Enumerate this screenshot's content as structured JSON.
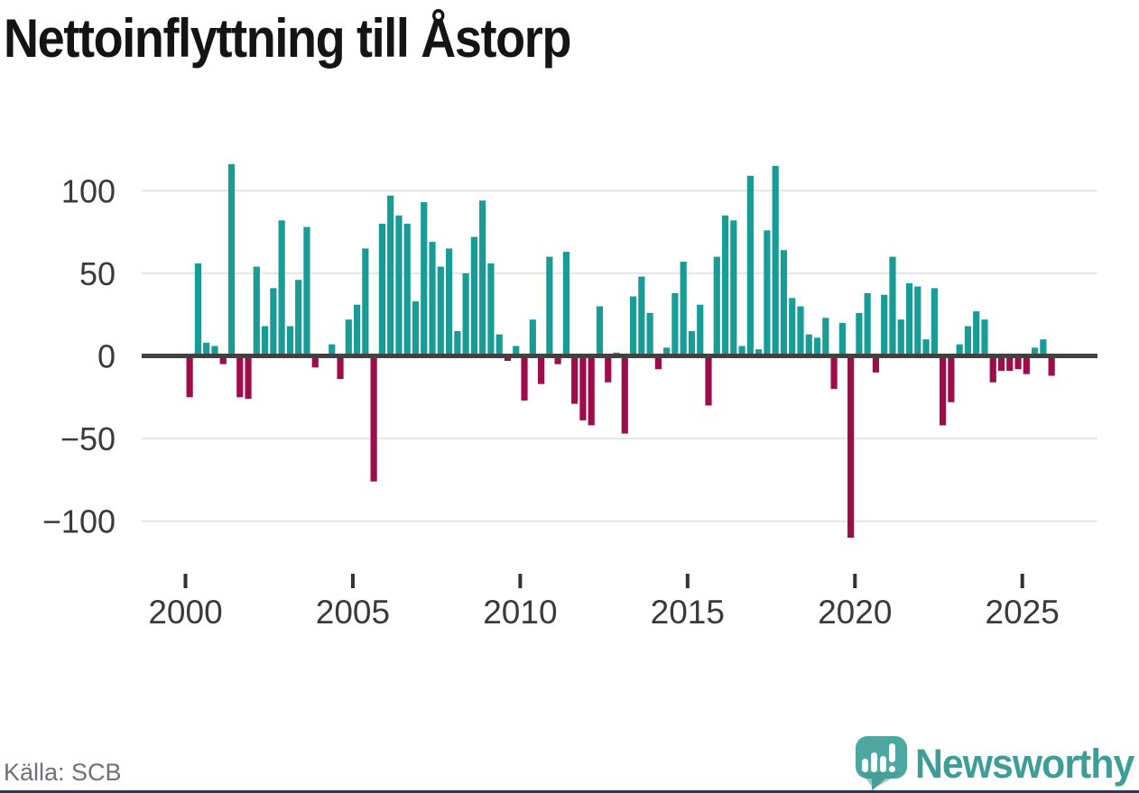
{
  "header": {
    "title": "Nettoinflyttning till Åstorp"
  },
  "footer": {
    "source_label": "Källa: SCB",
    "brand_name": "Newsworthy"
  },
  "colors": {
    "positive_bar": "#199C96",
    "negative_bar": "#9E0D49",
    "zero_line": "#414141",
    "gridline": "#E5E5E5",
    "axis_text": "#3A3A3A",
    "tick_mark": "#333333",
    "title_text": "#141414",
    "source_text": "#70707A",
    "brand_teal": "#3F9D98",
    "logo_icon_teal": "#4FA7A1",
    "bottom_strip": "#2D3850"
  },
  "chart_data": {
    "type": "bar",
    "title": "Nettoinflyttning till Åstorp",
    "xlabel": "",
    "ylabel": "",
    "x_unit": "quarter",
    "ylim": [
      -125,
      125
    ],
    "grid": "horizontal",
    "legend": "none",
    "y_ticks": [
      100,
      50,
      0,
      -50,
      -100
    ],
    "y_tick_labels": [
      "100",
      "50",
      "0",
      "−50",
      "−100"
    ],
    "x_tick_years": [
      2000,
      2005,
      2010,
      2015,
      2020,
      2025
    ],
    "x_tick_labels": [
      "2000",
      "2005",
      "2010",
      "2015",
      "2020",
      "2025"
    ],
    "categories": [
      "2000 Q1",
      "2000 Q2",
      "2000 Q3",
      "2000 Q4",
      "2001 Q1",
      "2001 Q2",
      "2001 Q3",
      "2001 Q4",
      "2002 Q1",
      "2002 Q2",
      "2002 Q3",
      "2002 Q4",
      "2003 Q1",
      "2003 Q2",
      "2003 Q3",
      "2003 Q4",
      "2004 Q1",
      "2004 Q2",
      "2004 Q3",
      "2004 Q4",
      "2005 Q1",
      "2005 Q2",
      "2005 Q3",
      "2005 Q4",
      "2006 Q1",
      "2006 Q2",
      "2006 Q3",
      "2006 Q4",
      "2007 Q1",
      "2007 Q2",
      "2007 Q3",
      "2007 Q4",
      "2008 Q1",
      "2008 Q2",
      "2008 Q3",
      "2008 Q4",
      "2009 Q1",
      "2009 Q2",
      "2009 Q3",
      "2009 Q4",
      "2010 Q1",
      "2010 Q2",
      "2010 Q3",
      "2010 Q4",
      "2011 Q1",
      "2011 Q2",
      "2011 Q3",
      "2011 Q4",
      "2012 Q1",
      "2012 Q2",
      "2012 Q3",
      "2012 Q4",
      "2013 Q1",
      "2013 Q2",
      "2013 Q3",
      "2013 Q4",
      "2014 Q1",
      "2014 Q2",
      "2014 Q3",
      "2014 Q4",
      "2015 Q1",
      "2015 Q2",
      "2015 Q3",
      "2015 Q4",
      "2016 Q1",
      "2016 Q2",
      "2016 Q3",
      "2016 Q4",
      "2017 Q1",
      "2017 Q2",
      "2017 Q3",
      "2017 Q4",
      "2018 Q1",
      "2018 Q2",
      "2018 Q3",
      "2018 Q4",
      "2019 Q1",
      "2019 Q2",
      "2019 Q3",
      "2019 Q4",
      "2020 Q1",
      "2020 Q2",
      "2020 Q3",
      "2020 Q4",
      "2021 Q1",
      "2021 Q2",
      "2021 Q3",
      "2021 Q4",
      "2022 Q1",
      "2022 Q2",
      "2022 Q3",
      "2022 Q4",
      "2023 Q1",
      "2023 Q2",
      "2023 Q3",
      "2023 Q4",
      "2024 Q1",
      "2024 Q2",
      "2024 Q3",
      "2024 Q4",
      "2025 Q1",
      "2025 Q2",
      "2025 Q3",
      "2025 Q4"
    ],
    "values": [
      -25,
      56,
      8,
      6,
      -5,
      116,
      -25,
      -26,
      54,
      18,
      41,
      82,
      18,
      46,
      78,
      -7,
      0,
      7,
      -14,
      22,
      31,
      65,
      -76,
      80,
      97,
      85,
      80,
      33,
      93,
      69,
      54,
      65,
      15,
      50,
      72,
      94,
      56,
      13,
      -3,
      6,
      -27,
      22,
      -17,
      60,
      -5,
      63,
      -29,
      -39,
      -42,
      30,
      -16,
      2,
      -47,
      36,
      48,
      26,
      -8,
      5,
      38,
      57,
      15,
      31,
      -30,
      60,
      85,
      82,
      6,
      109,
      4,
      76,
      115,
      64,
      35,
      30,
      13,
      11,
      23,
      -20,
      20,
      -110,
      26,
      38,
      -10,
      37,
      60,
      22,
      44,
      42,
      10,
      41,
      -42,
      -28,
      7,
      18,
      27,
      22,
      -16,
      -9,
      -9,
      -8,
      -11,
      5,
      10,
      -12
    ]
  }
}
